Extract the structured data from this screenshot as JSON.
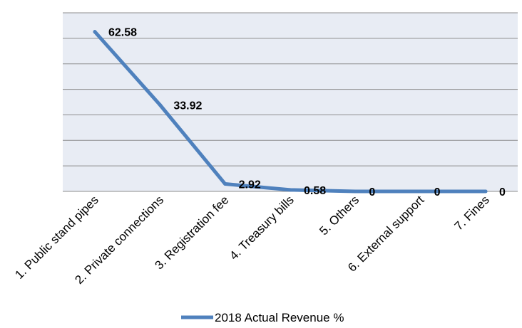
{
  "chart_data": {
    "type": "line",
    "title": "",
    "xlabel": "",
    "ylabel": "",
    "categories": [
      "1. Public stand pipes",
      "2. Private connections",
      "3. Registration fee",
      "4. Treasury bills",
      "5. Others",
      "6. External support",
      "7. Fines"
    ],
    "series": [
      {
        "name": "2018 Actual Revenue %",
        "values": [
          62.58,
          33.92,
          2.92,
          0.58,
          0,
          0,
          0
        ],
        "color": "#4f81bd"
      }
    ],
    "data_labels": [
      "62.58",
      "33.92",
      "2.92",
      "0.58",
      "0",
      "0",
      "0"
    ],
    "ylim": [
      0,
      70
    ],
    "y_gridline_step": 10,
    "y_tick_labels_visible": false,
    "grid": true,
    "plot_background": "#e8ecf4",
    "legend_position": "bottom"
  }
}
